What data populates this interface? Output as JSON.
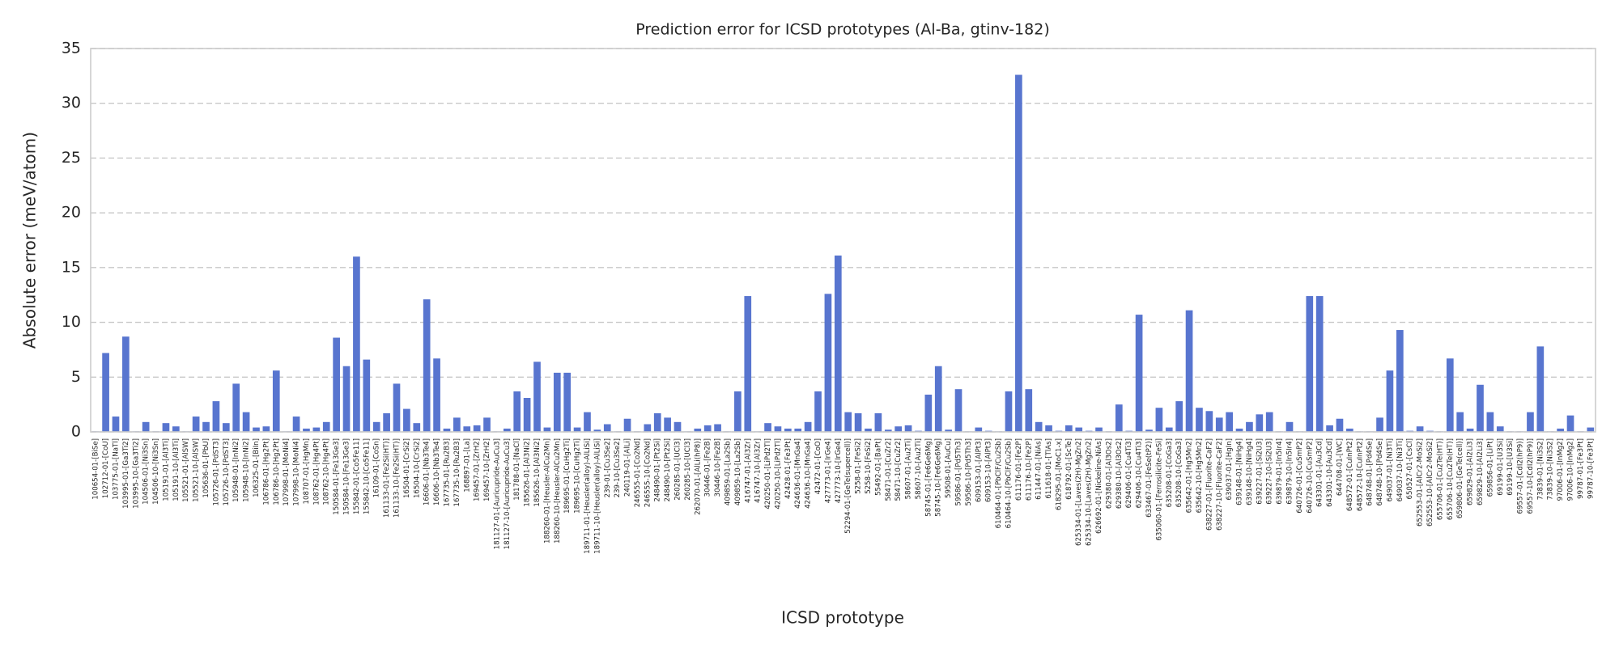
{
  "chart_data": {
    "type": "bar",
    "title": "Prediction error for ICSD prototypes (Al-Ba, gtinv-182)",
    "x_label": "ICSD prototype",
    "y_label": "Absolute error (meV/atom)",
    "color": "#5875cf",
    "grid": true,
    "ylim": [
      0,
      35
    ],
    "yticks": [
      0,
      5,
      10,
      15,
      20,
      25,
      30,
      35
    ],
    "categories": [
      "100654-01-[BiSe]",
      "102712-01-[CoU]",
      "103775-01-[NaTl]",
      "103995-01-[Ga3Ti2]",
      "103995-10-[Ga3Ti2]",
      "104506-01-[Ni3Sn]",
      "104506-10-[Ni3Sn]",
      "105191-01-[Al3Ti]",
      "105191-10-[Al3Ti]",
      "105521-01-[AlSW]",
      "105521-10-[AlSW]",
      "105636-01-[PbU]",
      "105726-01-[PdST3]",
      "105726-10-[PdST3]",
      "105948-01-[InNi2]",
      "105948-10-[InNi2]",
      "106325-01-[BiIn]",
      "106786-01-[Hg2Pt]",
      "106786-10-[Hg2Pt]",
      "107998-01-[MoNi4]",
      "107998-10-[MoNi4]",
      "108707-01-[HgMn]",
      "108762-01-[Hg4Pt]",
      "108762-10-[Hg4Pt]",
      "150584-01-[Fe13Ge3]",
      "150584-10-[Fe13Ge3]",
      "155842-01-[Co5Fe11]",
      "155842-10-[Co5Fe11]",
      "16109-01-[CoSn]",
      "161133-01-[Fe2Si(HT)]",
      "161133-10-[Fe2Si(HT)]",
      "16504-01-[CrSi2]",
      "16504-10-[CrSi2]",
      "16606-01-[Nb3Te4]",
      "16606-10-[Nb3Te4]",
      "167735-01-[Ru2B3]",
      "167735-10-[Ru2B3]",
      "168897-01-[La]",
      "169457-01-[ZrH2]",
      "169457-10-[ZrH2]",
      "181127-01-[Auricupride-AuCu3]",
      "181127-10-[Auricupride-AuCu3]",
      "181788-01-[NaCl]",
      "185626-01-[Al3Ni2]",
      "185626-10-[Al3Ni2]",
      "188260-01-[Heusler-AlCu2Mn]",
      "188260-10-[Heusler-AlCu2Mn]",
      "189695-01-[CuHg2Ti]",
      "189695-10-[CuHg2Ti]",
      "189711-01-[Heusler(alloy)-AlLiSi]",
      "189711-10-[Heusler(alloy)-AlLiSi]",
      "239-01-[Cu3Se2]",
      "239-10-[Cu3Se2]",
      "240119-01-[AlLi]",
      "246555-01-[Co2Nd]",
      "246555-10-[Co2Nd]",
      "248490-01-[Pt2Si]",
      "248490-10-[Pt2Si]",
      "260285-01-[UCl3]",
      "260285-10-[UCl3]",
      "262070-01-[AlLi(hP8)]",
      "30446-01-[Fe2B]",
      "30446-10-[Fe2B]",
      "409859-01-[La2Sb]",
      "409859-10-[La2Sb]",
      "416747-01-[Al3Zr]",
      "416747-10-[Al3Zr]",
      "420250-01-[LiPd2Tl]",
      "420250-10-[LiPd2Tl]",
      "42428-01-[Fe3Pt]",
      "424636-01-[MnGa4]",
      "424636-10-[MnGa4]",
      "42472-01-[CoO]",
      "427773-01-[IrGe4]",
      "427773-10-[IrGe4]",
      "52294-01-[GeTe(supercell)]",
      "5258-01-[FeSi2]",
      "5258-10-[FeSi2]",
      "55492-01-[BaPt]",
      "58471-01-[CuZr2]",
      "58471-10-[CuZr2]",
      "58607-01-[Au2Ti]",
      "58607-10-[Au2Ti]",
      "58745-01-[Fe6Ge6Mg]",
      "58745-10-[Fe6Ge6Mg]",
      "59508-01-[AuCu]",
      "59586-01-[Pd5Th3]",
      "59586-10-[Pd5Th3]",
      "609153-01-[AlPt3]",
      "609153-10-[AlPt3]",
      "610464-01-[PbClF/Cu2Sb]",
      "610464-10-[PbClF/Cu2Sb]",
      "611176-01-[Fe2P]",
      "611176-10-[Fe2P]",
      "611447-01-[NiAs]",
      "611618-01-[TlAs]",
      "618295-01-[MoC1-x]",
      "618792-01-[ScTe]",
      "625334-01-[Laves(2H)-MgZn2]",
      "625334-10-[Laves(2H)-MgZn2]",
      "626692-01-[Nickeline-NiAs]",
      "629380-01-[Al3Os2]",
      "629380-10-[Al3Os2]",
      "629406-01-[Cu4Ti3]",
      "629406-10-[Cu4Ti3]",
      "633467-01-[FeSe(tP2)]",
      "635060-01-[Ferrosilicite-FeSi]",
      "635208-01-[CoGa3]",
      "635208-10-[CoGa3]",
      "635642-01-[Hg5Mn2]",
      "635642-10-[Hg5Mn2]",
      "638227-01-[Fluorite-CaF2]",
      "638227-10-[Fluorite-CaF2]",
      "639037-01-[HgIn]",
      "639148-01-[NiHg4]",
      "639148-10-[NiHg4]",
      "639227-01-[Si2U3]",
      "639227-10-[Si2U3]",
      "639879-01-[In5Ir4]",
      "639879-10-[In5Ir4]",
      "640726-01-[CuSmP2]",
      "640726-10-[CuSmP2]",
      "643301-01-[Au3Cd]",
      "643301-10-[Au3Cd]",
      "644708-01-[WC]",
      "648572-01-[CuInPt2]",
      "648572-10-[CuInPt2]",
      "648748-01-[Pd4Se]",
      "648748-10-[Pd4Se]",
      "649037-01-[Ni3Ti]",
      "649037-10-[Ni3Ti]",
      "650527-01-[CsCl]",
      "652553-01-[AlCr2-MoSi2]",
      "652553-10-[AlCr2-MoSi2]",
      "655706-01-[Cu2Te(HT)]",
      "655706-10-[Cu2Te(HT)]",
      "659806-01-[GeTe(cell)]",
      "659829-01-[Al2Li3]",
      "659829-10-[Al2Li3]",
      "659856-01-[LiPt]",
      "69199-01-[U3Si]",
      "69199-10-[U3Si]",
      "69557-01-[CdI2(hP9)]",
      "69557-10-[CdI2(hP9)]",
      "73839-01-[Ni3S2]",
      "73839-10-[Ni3S2]",
      "97006-01-[InMg2]",
      "97006-10-[InMg2]",
      "99787-01-[Fe3Pt]",
      "99787-10-[Fe3Pt]"
    ],
    "values": [
      0.05,
      7.2,
      1.4,
      8.7,
      0.05,
      0.9,
      0.05,
      0.8,
      0.5,
      0.05,
      1.4,
      0.9,
      2.8,
      0.8,
      4.4,
      1.8,
      0.4,
      0.5,
      5.6,
      0.05,
      1.4,
      0.3,
      0.4,
      0.9,
      8.6,
      6.0,
      16.0,
      6.6,
      0.9,
      1.7,
      4.4,
      2.1,
      0.8,
      12.1,
      6.7,
      0.3,
      1.3,
      0.5,
      0.6,
      1.3,
      0.05,
      0.3,
      3.7,
      3.1,
      6.4,
      0.4,
      5.4,
      5.4,
      0.4,
      1.8,
      0.2,
      0.7,
      0.05,
      1.2,
      0.05,
      0.7,
      1.7,
      1.3,
      0.9,
      0.05,
      0.3,
      0.6,
      0.7,
      0.05,
      3.7,
      12.4,
      0.05,
      0.8,
      0.5,
      0.3,
      0.3,
      0.9,
      3.7,
      12.6,
      16.1,
      1.8,
      1.7,
      0.3,
      1.7,
      0.2,
      0.5,
      0.6,
      0.1,
      3.4,
      6.0,
      0.2,
      3.9,
      0.05,
      0.4,
      0.1,
      0.05,
      3.7,
      32.6,
      3.9,
      0.9,
      0.6,
      0.1,
      0.6,
      0.4,
      0.1,
      0.4,
      0.05,
      2.5,
      0.1,
      10.7,
      0.2,
      2.2,
      0.4,
      2.8,
      11.1,
      2.2,
      1.9,
      1.3,
      1.8,
      0.3,
      0.9,
      1.6,
      1.8,
      0.05,
      0.9,
      0.05,
      12.4,
      12.4,
      0.6,
      1.2,
      0.3,
      0.05,
      0.05,
      1.3,
      5.6,
      9.3,
      0.1,
      0.5,
      0.1,
      0.05,
      6.7,
      1.8,
      0.3,
      4.3,
      1.8,
      0.5,
      0.05,
      0.05,
      1.8,
      7.8,
      0.05,
      0.3,
      1.5,
      0.05,
      0.4
    ]
  }
}
